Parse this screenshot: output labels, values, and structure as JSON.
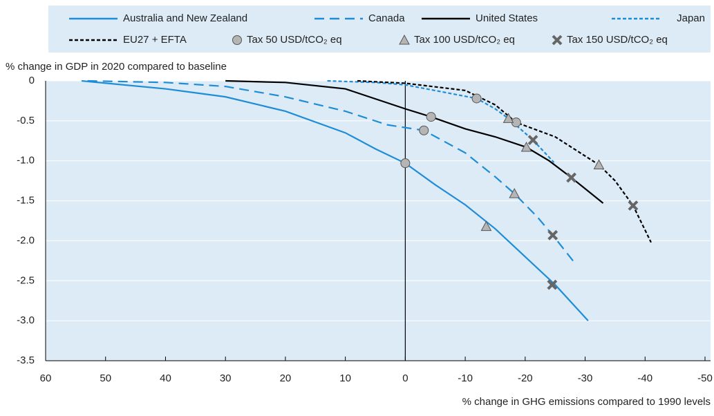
{
  "chart_data": {
    "type": "line",
    "ylabel": "% change in GDP in 2020 compared to baseline",
    "xlabel": "% change in GHG emissions compared to 1990 levels",
    "xlim": [
      60,
      -50
    ],
    "ylim": [
      -3.5,
      0
    ],
    "xticks": [
      60,
      50,
      40,
      30,
      20,
      10,
      0,
      -10,
      -20,
      -30,
      -40,
      -50
    ],
    "yticks": [
      0,
      -0.5,
      {
        "value": -1,
        "label": "-1.0"
      },
      -1.5,
      {
        "value": -2,
        "label": "-2.0"
      },
      -2.5,
      {
        "value": -3,
        "label": "-3.0"
      },
      -3.5
    ],
    "grid": true,
    "series": [
      {
        "name": "Australia and New Zealand",
        "color": "#1f8dd6",
        "dash": "solid",
        "x": [
          54,
          40,
          30,
          20,
          10,
          5,
          0,
          -5,
          -10,
          -15,
          -20,
          -25,
          -30.5
        ],
        "values": [
          0,
          -0.1,
          -0.2,
          -0.38,
          -0.65,
          -0.85,
          -1.03,
          -1.3,
          -1.55,
          -1.85,
          -2.2,
          -2.55,
          -3.0
        ]
      },
      {
        "name": "Canada",
        "color": "#1f8dd6",
        "dash": "long",
        "x": [
          53,
          40,
          30,
          20,
          10,
          3,
          -3.1,
          -10,
          -15,
          -18.2,
          -22,
          -24.6,
          -28.5
        ],
        "values": [
          0,
          -0.02,
          -0.07,
          -0.2,
          -0.38,
          -0.55,
          -0.62,
          -0.9,
          -1.2,
          -1.41,
          -1.7,
          -1.93,
          -2.3
        ]
      },
      {
        "name": "United States",
        "color": "#000000",
        "dash": "solid",
        "x": [
          30,
          20,
          10,
          0,
          -4.3,
          -10,
          -15,
          -20.2,
          -24,
          -27.7,
          -33
        ],
        "values": [
          0,
          -0.02,
          -0.1,
          -0.35,
          -0.45,
          -0.6,
          -0.7,
          -0.83,
          -1.0,
          -1.21,
          -1.53
        ]
      },
      {
        "name": "Japan",
        "color": "#1f8dd6",
        "dash": "short",
        "x": [
          13,
          5,
          0,
          -11.9,
          -15,
          -17.2,
          -21.3,
          -24.8
        ],
        "values": [
          0,
          -0.02,
          -0.05,
          -0.22,
          -0.35,
          -0.47,
          -0.74,
          -1.02
        ]
      },
      {
        "name": "EU27 + EFTA",
        "color": "#000000",
        "dash": "short",
        "x": [
          8,
          0,
          -10,
          -15,
          -18.5,
          -25,
          -32.3,
          -35,
          -38,
          -41
        ],
        "values": [
          0,
          -0.03,
          -0.12,
          -0.3,
          -0.52,
          -0.7,
          -1.05,
          -1.25,
          -1.56,
          -2.02
        ]
      },
      {
        "name": "Tax 50 USD/tCO₂ eq",
        "color": "#b5b5b5",
        "marker": "circle",
        "x": [
          0,
          -3.1,
          -4.3,
          -11.9,
          -18.5
        ],
        "values": [
          -1.03,
          -0.62,
          -0.45,
          -0.22,
          -0.52
        ]
      },
      {
        "name": "Tax 100 USD/tCO₂ eq",
        "color": "#b5b5b5",
        "marker": "triangle",
        "x": [
          -13.5,
          -18.2,
          -20.2,
          -17.2,
          -32.3
        ],
        "values": [
          -1.82,
          -1.41,
          -0.83,
          -0.47,
          -1.05
        ]
      },
      {
        "name": "Tax 150 USD/tCO₂ eq",
        "color": "#b5b5b5",
        "marker": "cross",
        "x": [
          -24.5,
          -24.6,
          -27.7,
          -21.3,
          -38
        ],
        "values": [
          -2.55,
          -1.93,
          -1.21,
          -0.74,
          -1.56
        ]
      }
    ]
  }
}
